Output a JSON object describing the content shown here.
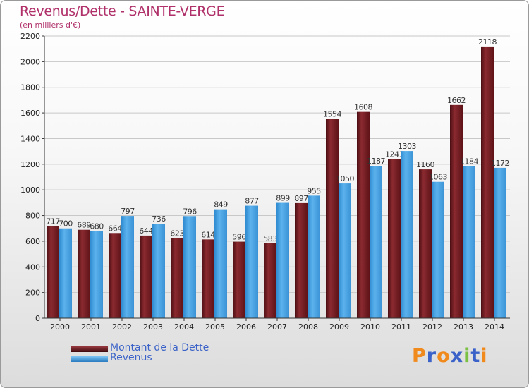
{
  "header": {
    "title": "Revenus/Dette - SAINTE-VERGE",
    "subtitle": "(en milliers d'€)"
  },
  "legend": [
    {
      "label": "Montant de la Dette",
      "color": "#7a1c22"
    },
    {
      "label": "Revenus",
      "color": "#4aa3e2"
    }
  ],
  "logo": {
    "text": "Proxiti",
    "colors": [
      "#f08a1c",
      "#3a62c8",
      "#f08a1c",
      "#3a62c8",
      "#7ac043",
      "#3a62c8",
      "#f08a1c"
    ]
  },
  "chart_data": {
    "type": "bar",
    "title": "Revenus/Dette - SAINTE-VERGE",
    "subtitle": "(en milliers d'€)",
    "categories": [
      "2000",
      "2001",
      "2002",
      "2003",
      "2004",
      "2005",
      "2006",
      "2007",
      "2008",
      "2009",
      "2010",
      "2011",
      "2012",
      "2013",
      "2014"
    ],
    "series": [
      {
        "name": "Montant de la Dette",
        "color": "#7a1c22",
        "values": [
          717,
          689,
          664,
          644,
          623,
          614,
          596,
          583,
          897,
          1554,
          1608,
          1241,
          1160,
          1662,
          2118
        ]
      },
      {
        "name": "Revenus",
        "color": "#4aa3e2",
        "values": [
          700,
          680,
          797,
          736,
          796,
          849,
          877,
          899,
          955,
          1050,
          1187,
          1303,
          1063,
          1184,
          1172
        ]
      }
    ],
    "data_labels": [
      [
        "717",
        "689",
        "664",
        "644",
        "623",
        "614",
        "596",
        "583",
        "897",
        "1554",
        "1608",
        "1241",
        "1160",
        "1662",
        "2118"
      ],
      [
        "700",
        "680",
        "797",
        "736",
        "796",
        "849",
        "877",
        "899",
        "955",
        "1050",
        "1187",
        "1303",
        "1063",
        "1184",
        "1172"
      ]
    ],
    "ylim": [
      0,
      2200
    ],
    "yticks": [
      0,
      200,
      400,
      600,
      800,
      1000,
      1200,
      1400,
      1600,
      1800,
      2000,
      2200
    ],
    "grid": true,
    "legend_position": "bottom-left"
  }
}
